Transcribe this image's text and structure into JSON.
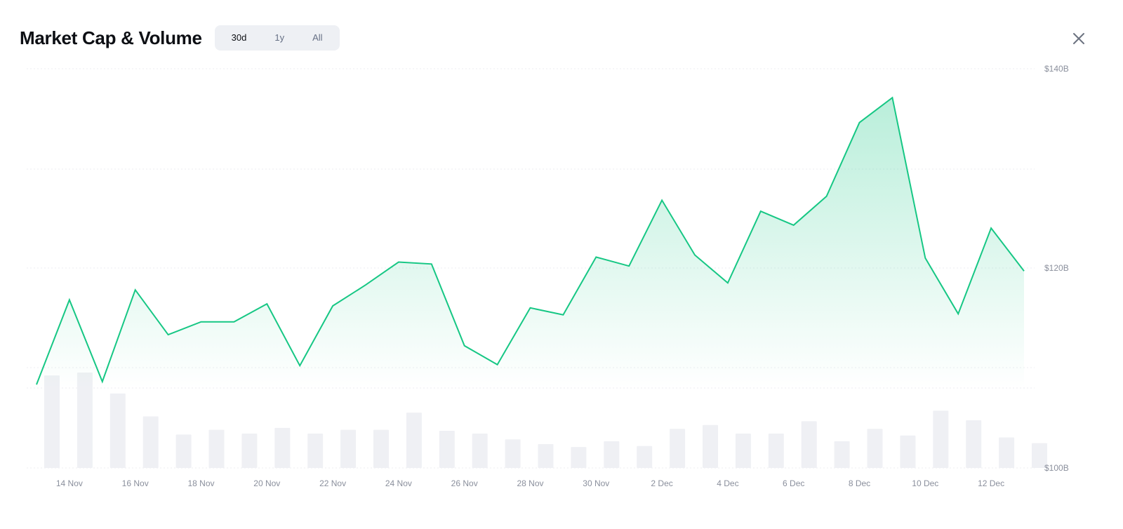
{
  "header": {
    "title": "Market Cap & Volume",
    "tabs": [
      {
        "label": "30d",
        "active": true
      },
      {
        "label": "1y",
        "active": false
      },
      {
        "label": "All",
        "active": false
      }
    ]
  },
  "icons": {
    "close": "close-icon"
  },
  "colors": {
    "line": "#16c784",
    "volume_bar": "#eff0f4",
    "grid": "#eceef2",
    "axis_text": "#8a8f9c"
  },
  "chart_data": {
    "type": "line",
    "title": "Market Cap & Volume",
    "xlabel": "",
    "ylabel": "",
    "grid": true,
    "x_tick_labels": [
      "14 Nov",
      "16 Nov",
      "18 Nov",
      "20 Nov",
      "22 Nov",
      "24 Nov",
      "26 Nov",
      "28 Nov",
      "30 Nov",
      "2 Dec",
      "4 Dec",
      "6 Dec",
      "8 Dec",
      "10 Dec",
      "12 Dec"
    ],
    "y_tick_labels": [
      "$140B",
      "$120B",
      "$100B"
    ],
    "ylim": [
      100,
      140
    ],
    "series": [
      {
        "values": [
          108.3,
          116.8,
          108.6,
          117.8,
          113.3,
          114.6,
          114.6,
          116.4,
          110.2,
          116.2,
          118.3,
          120.6,
          120.4,
          112.2,
          110.3,
          116.0,
          115.3,
          121.1,
          120.2,
          126.8,
          121.3,
          118.5,
          125.7,
          124.3,
          127.2,
          134.6,
          137.1,
          121.0,
          115.4,
          124.0,
          119.7
        ]
      }
    ],
    "volume_relative": [
      0.97,
      1.0,
      0.78,
      0.54,
      0.35,
      0.4,
      0.36,
      0.42,
      0.36,
      0.4,
      0.4,
      0.58,
      0.39,
      0.36,
      0.3,
      0.25,
      0.22,
      0.28,
      0.23,
      0.41,
      0.45,
      0.36,
      0.36,
      0.49,
      0.28,
      0.41,
      0.34,
      0.6,
      0.5,
      0.32,
      0.26
    ]
  }
}
